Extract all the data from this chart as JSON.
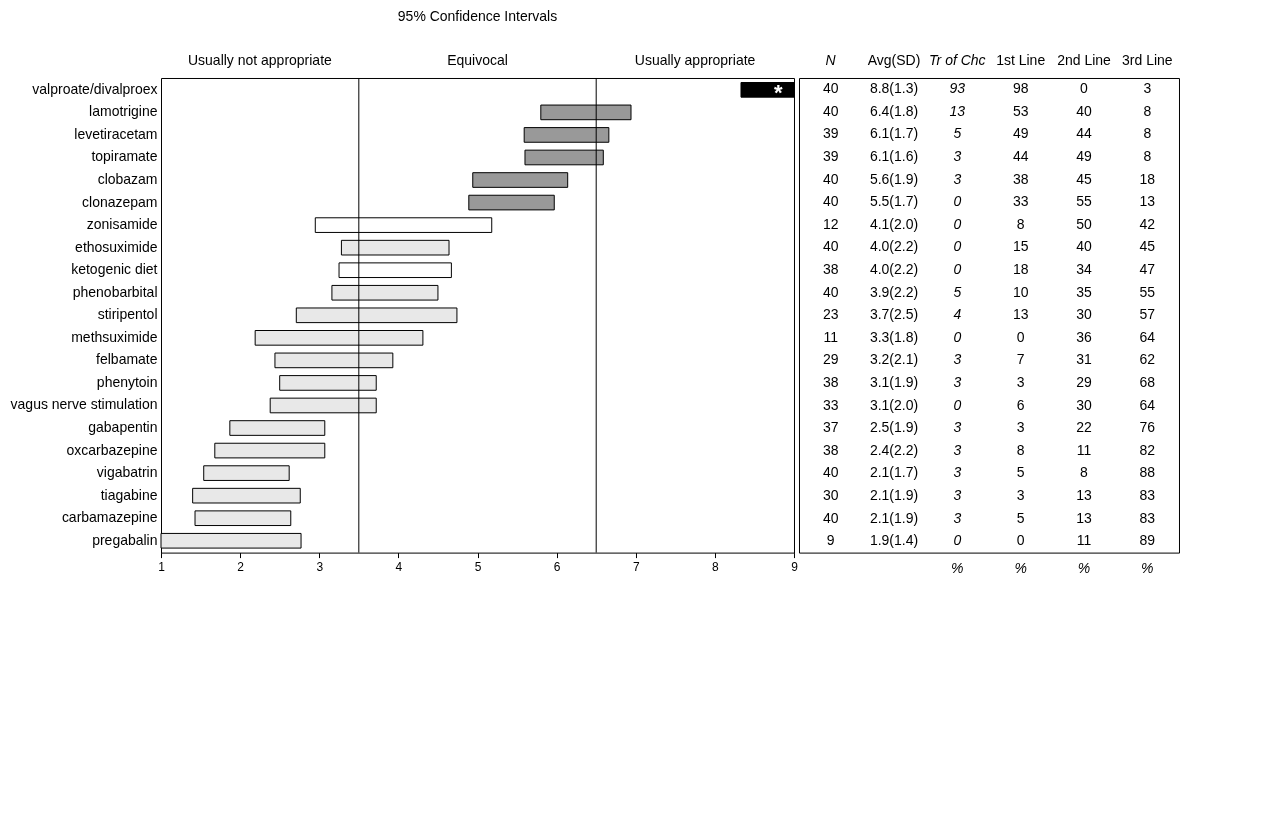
{
  "chart_data": {
    "type": "bar",
    "orientation": "horizontal",
    "title": "95% Confidence Intervals",
    "categories": [
      "valproate/divalproex",
      "lamotrigine",
      "levetiracetam",
      "topiramate",
      "clobazam",
      "clonazepam",
      "zonisamide",
      "ethosuximide",
      "ketogenic diet",
      "phenobarbital",
      "stiripentol",
      "methsuximide",
      "felbamate",
      "phenytoin",
      "vagus nerve stimulation",
      "gabapentin",
      "oxcarbazepine",
      "vigabatrin",
      "tiagabine",
      "carbamazepine",
      "pregabalin"
    ],
    "base": [
      8.33,
      5.8,
      5.59,
      5.6,
      4.94,
      4.89,
      2.95,
      3.28,
      3.25,
      3.16,
      2.71,
      2.19,
      2.44,
      2.5,
      2.38,
      1.87,
      1.68,
      1.54,
      1.4,
      1.43,
      1.0
    ],
    "values": [
      0.67,
      1.14,
      1.07,
      0.99,
      1.2,
      1.08,
      2.23,
      1.36,
      1.42,
      1.34,
      2.03,
      2.12,
      1.49,
      1.22,
      1.34,
      1.2,
      1.39,
      1.08,
      1.36,
      1.21,
      1.77
    ],
    "colors": [
      "#000000",
      "#999999",
      "#999999",
      "#999999",
      "#999999",
      "#999999",
      "#ffffff",
      "#e8e8e8",
      "#ffffff",
      "#e8e8e8",
      "#e8e8e8",
      "#e8e8e8",
      "#e8e8e8",
      "#e8e8e8",
      "#e8e8e8",
      "#e8e8e8",
      "#e8e8e8",
      "#e8e8e8",
      "#e8e8e8",
      "#e8e8e8",
      "#e8e8e8"
    ],
    "xlim": [
      1,
      9
    ],
    "xticks": [
      1,
      2,
      3,
      4,
      5,
      6,
      7,
      8,
      9
    ],
    "grid": false,
    "ref_lines": [
      {
        "axis": "x",
        "value": 3.5
      },
      {
        "axis": "x",
        "value": 6.5
      }
    ],
    "annotations": [
      {
        "text": "*",
        "x": 8.8,
        "y": "valproate/divalproex"
      },
      "Usually not appropriate",
      "Equivocal",
      "Usually appropriate",
      "N",
      "Avg(SD)",
      "Tr of Chc",
      "1st Line",
      "2nd Line",
      "3rd Line",
      "40",
      "8.8(1.3)",
      "93",
      "98",
      "0",
      "3",
      "40",
      "6.4(1.8)",
      "13",
      "53",
      "40",
      "8",
      "39",
      "6.1(1.7)",
      "5",
      "49",
      "44",
      "8",
      "39",
      "6.1(1.6)",
      "3",
      "44",
      "49",
      "8",
      "40",
      "5.6(1.9)",
      "3",
      "38",
      "45",
      "18",
      "40",
      "5.5(1.7)",
      "0",
      "33",
      "55",
      "13",
      "12",
      "4.1(2.0)",
      "0",
      "8",
      "50",
      "42",
      "40",
      "4.0(2.2)",
      "0",
      "15",
      "40",
      "45",
      "38",
      "4.0(2.2)",
      "0",
      "18",
      "34",
      "47",
      "40",
      "3.9(2.2)",
      "5",
      "10",
      "35",
      "55",
      "23",
      "3.7(2.5)",
      "4",
      "13",
      "30",
      "57",
      "11",
      "3.3(1.8)",
      "0",
      "0",
      "36",
      "64",
      "29",
      "3.2(2.1)",
      "3",
      "7",
      "31",
      "62",
      "38",
      "3.1(1.9)",
      "3",
      "3",
      "29",
      "68",
      "33",
      "3.1(2.0)",
      "0",
      "6",
      "30",
      "64",
      "37",
      "2.5(1.9)",
      "3",
      "3",
      "22",
      "76",
      "38",
      "2.4(2.2)",
      "3",
      "8",
      "11",
      "82",
      "40",
      "2.1(1.7)",
      "3",
      "5",
      "8",
      "88",
      "30",
      "2.1(1.9)",
      "3",
      "3",
      "13",
      "83",
      "40",
      "2.1(1.9)",
      "3",
      "5",
      "13",
      "83",
      "9",
      "1.9(1.4)",
      "0",
      "0",
      "11",
      "89",
      "%",
      "%",
      "%",
      "%"
    ]
  }
}
